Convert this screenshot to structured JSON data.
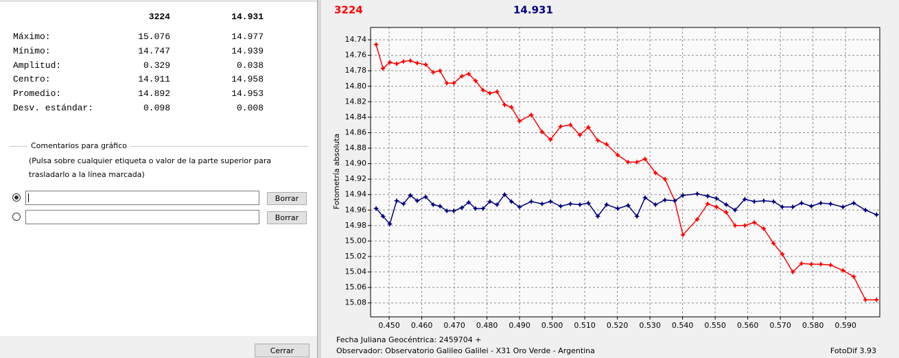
{
  "stats": {
    "columns": [
      "3224",
      "14.931"
    ],
    "rows": [
      [
        "Máximo:",
        "15.076",
        "14.977"
      ],
      [
        "Mínimo:",
        "14.747",
        "14.939"
      ],
      [
        "Amplitud:",
        "0.329",
        "0.038"
      ],
      [
        "Centro:",
        "14.911",
        "14.958"
      ],
      [
        "Promedio:",
        "14.892",
        "14.953"
      ],
      [
        "Desv. estándar:",
        "0.098",
        "0.008"
      ]
    ]
  },
  "comments": {
    "legend": "Comentarios para gráfico",
    "hint": "(Pulsa sobre cualquier etiqueta o valor de la parte superior para trasladarlo a la línea marcada)",
    "clear_buttons": [
      "Borrar",
      "Borrar"
    ]
  },
  "close_button": "Cerrar",
  "chart_data": {
    "type": "line",
    "y_label": "Fotometría absoluta",
    "x_note": "Fecha Juliana Geocéntrica: 2459704 +",
    "observer": "Observador: Observatorio Galileo Galilei - X31 Oro Verde - Argentina",
    "software": "FotoDif 3.93",
    "x": [
      0.446,
      0.4481,
      0.4502,
      0.4523,
      0.4544,
      0.4565,
      0.4586,
      0.4612,
      0.4635,
      0.4656,
      0.4677,
      0.4698,
      0.4723,
      0.4744,
      0.4765,
      0.4788,
      0.4809,
      0.4831,
      0.4854,
      0.4875,
      0.49,
      0.4936,
      0.4969,
      0.4995,
      0.5026,
      0.5056,
      0.5085,
      0.5111,
      0.514,
      0.5167,
      0.5201,
      0.5233,
      0.526,
      0.5285,
      0.5317,
      0.5346,
      0.5376,
      0.5401,
      0.5445,
      0.5477,
      0.5504,
      0.5534,
      0.5561,
      0.5591,
      0.562,
      0.5649,
      0.5679,
      0.5706,
      0.5738,
      0.5765,
      0.5795,
      0.5824,
      0.5854,
      0.5892,
      0.5925,
      0.5961,
      0.5995
    ],
    "series": [
      {
        "name": "3224",
        "color": "#ff0000",
        "values": [
          14.746,
          14.777,
          14.769,
          14.771,
          14.768,
          14.767,
          14.77,
          14.772,
          14.782,
          14.78,
          14.796,
          14.796,
          14.787,
          14.784,
          14.793,
          14.805,
          14.809,
          14.807,
          14.824,
          14.827,
          14.845,
          14.837,
          14.859,
          14.869,
          14.852,
          14.85,
          14.863,
          14.853,
          14.87,
          14.875,
          14.889,
          14.898,
          14.898,
          14.894,
          14.912,
          14.92,
          14.948,
          14.992,
          14.972,
          14.952,
          14.956,
          14.963,
          14.98,
          14.98,
          14.976,
          14.984,
          15.003,
          15.017,
          15.04,
          15.029,
          15.03,
          15.03,
          15.031,
          15.038,
          15.046,
          15.076,
          15.076
        ]
      },
      {
        "name": "14.931",
        "color": "#000080",
        "values": [
          14.958,
          14.968,
          14.978,
          14.948,
          14.952,
          14.941,
          14.948,
          14.943,
          14.953,
          14.955,
          14.961,
          14.961,
          14.957,
          14.95,
          14.958,
          14.958,
          14.949,
          14.953,
          14.94,
          14.949,
          14.956,
          14.949,
          14.952,
          14.949,
          14.955,
          14.952,
          14.953,
          14.951,
          14.968,
          14.953,
          14.958,
          14.954,
          14.968,
          14.944,
          14.953,
          14.947,
          14.948,
          14.941,
          14.939,
          14.942,
          14.945,
          14.953,
          14.96,
          14.946,
          14.949,
          14.948,
          14.949,
          14.956,
          14.956,
          14.951,
          14.955,
          14.951,
          14.952,
          14.956,
          14.951,
          14.96,
          14.966
        ]
      }
    ],
    "xlim": [
      0.4443,
      0.6005
    ],
    "ylim": [
      14.724,
      15.098
    ],
    "y_inverted": true,
    "grid": true,
    "xticks": [
      {
        "value": 0.45,
        "label": "0.450"
      },
      {
        "value": 0.46,
        "label": "0.460"
      },
      {
        "value": 0.47,
        "label": "0.470"
      },
      {
        "value": 0.48,
        "label": "0.480"
      },
      {
        "value": 0.49,
        "label": "0.490"
      },
      {
        "value": 0.5,
        "label": "0.500"
      },
      {
        "value": 0.51,
        "label": "0.510"
      },
      {
        "value": 0.52,
        "label": "0.520"
      },
      {
        "value": 0.53,
        "label": "0.530"
      },
      {
        "value": 0.54,
        "label": "0.540"
      },
      {
        "value": 0.55,
        "label": "0.550"
      },
      {
        "value": 0.56,
        "label": "0.560"
      },
      {
        "value": 0.57,
        "label": "0.570"
      },
      {
        "value": 0.58,
        "label": "0.580"
      },
      {
        "value": 0.59,
        "label": "0.590"
      }
    ],
    "yticks": [
      14.74,
      14.76,
      14.78,
      {
        "value": 14.8,
        "label": "14.80"
      },
      14.82,
      14.84,
      14.86,
      14.88,
      {
        "value": 14.9,
        "label": "14.90"
      },
      14.92,
      14.94,
      14.96,
      14.98,
      {
        "value": 15.0,
        "label": "15.00"
      },
      15.02,
      15.04,
      15.06,
      15.08
    ]
  }
}
